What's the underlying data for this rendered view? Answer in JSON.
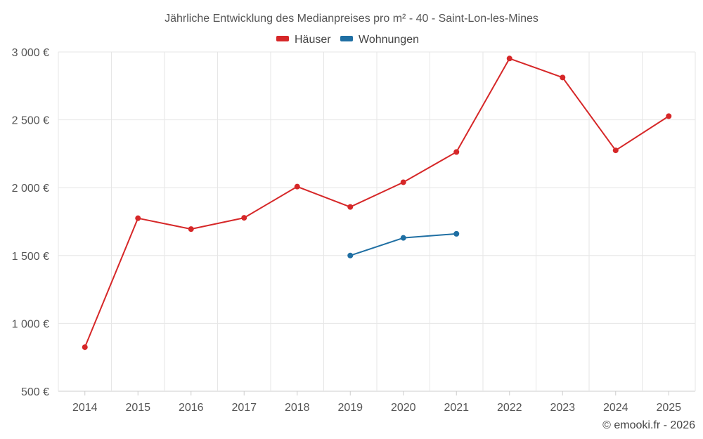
{
  "chart_data": {
    "type": "line",
    "title": "Jährliche Entwicklung des Medianpreises pro m² - 40 - Saint-Lon-les-Mines",
    "xlabel": "",
    "ylabel": "",
    "categories": [
      "2014",
      "2015",
      "2016",
      "2017",
      "2018",
      "2019",
      "2020",
      "2021",
      "2022",
      "2023",
      "2024",
      "2025"
    ],
    "ylim": [
      500,
      3000
    ],
    "yticks": [
      500,
      1000,
      1500,
      2000,
      2500,
      3000
    ],
    "ytick_labels": [
      "500 €",
      "1 000 €",
      "1 500 €",
      "2 000 €",
      "2 500 €",
      "3 000 €"
    ],
    "grid": true,
    "legend_position": "top-center",
    "series": [
      {
        "name": "Häuser",
        "color": "#d62728",
        "values": [
          825,
          1775,
          1695,
          1778,
          2008,
          1858,
          2040,
          2263,
          2952,
          2812,
          2275,
          2527
        ]
      },
      {
        "name": "Wohnungen",
        "color": "#1f6fa3",
        "values": [
          null,
          null,
          null,
          null,
          null,
          1500,
          1630,
          1660,
          null,
          null,
          null,
          null
        ]
      }
    ],
    "credit": "© emooki.fr - 2026"
  }
}
